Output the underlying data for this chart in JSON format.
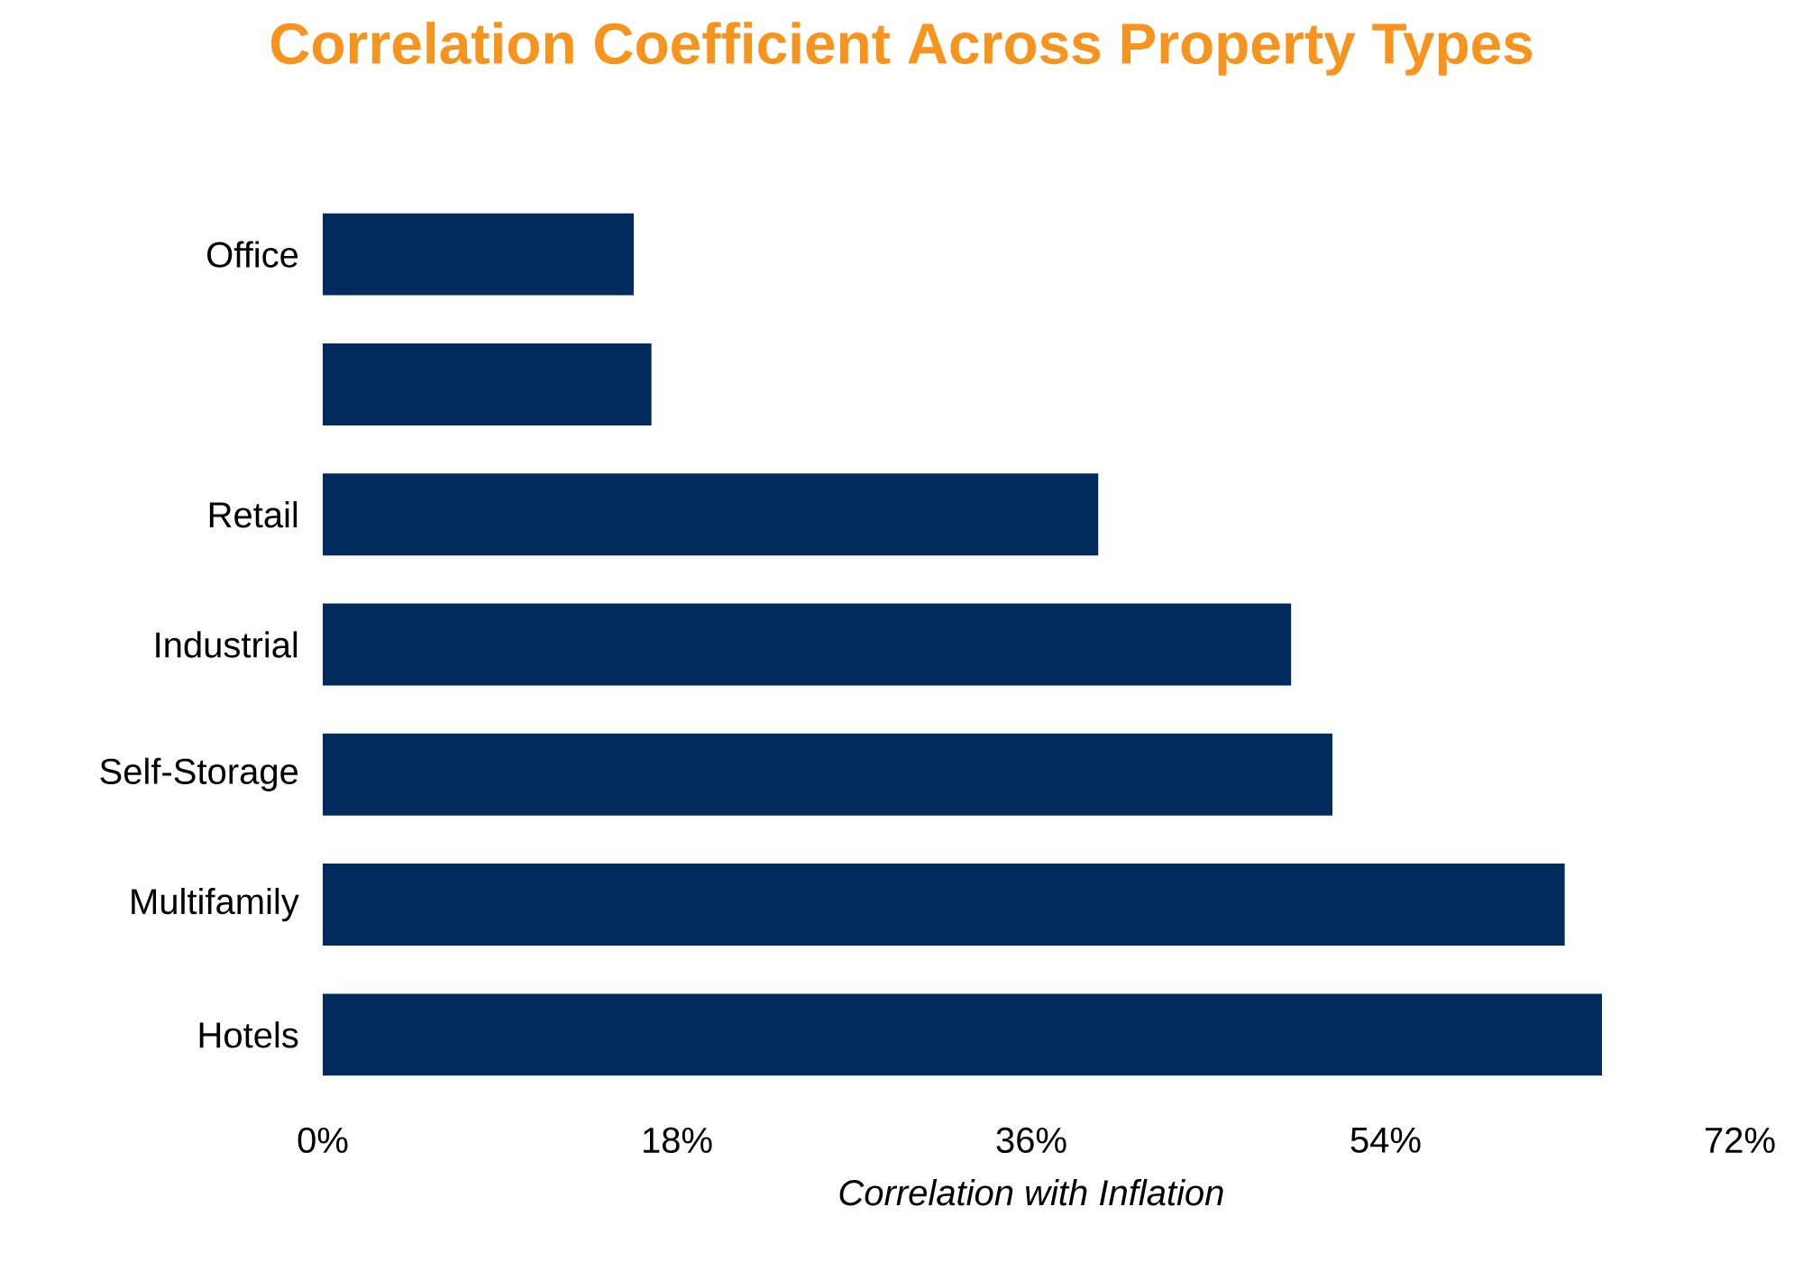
{
  "chart_data": {
    "type": "bar",
    "orientation": "horizontal",
    "title": "Correlation Coefficient Across Property Types",
    "xlabel": "Correlation with Inflation",
    "categories": [
      "Office",
      null,
      "Retail",
      "Industrial",
      "Self-Storage",
      "Multifamily",
      "Hotels"
    ],
    "values": [
      15.8,
      16.7,
      39.4,
      49.2,
      51.3,
      63.1,
      65.0
    ],
    "color": "#002b5c",
    "xlim": [
      0,
      72
    ],
    "xticks": [
      {
        "value": 0,
        "label": "0%"
      },
      {
        "value": 18,
        "label": "18%"
      },
      {
        "value": 36,
        "label": "36%"
      },
      {
        "value": 54,
        "label": "54%"
      },
      {
        "value": 72,
        "label": "72%"
      }
    ]
  }
}
